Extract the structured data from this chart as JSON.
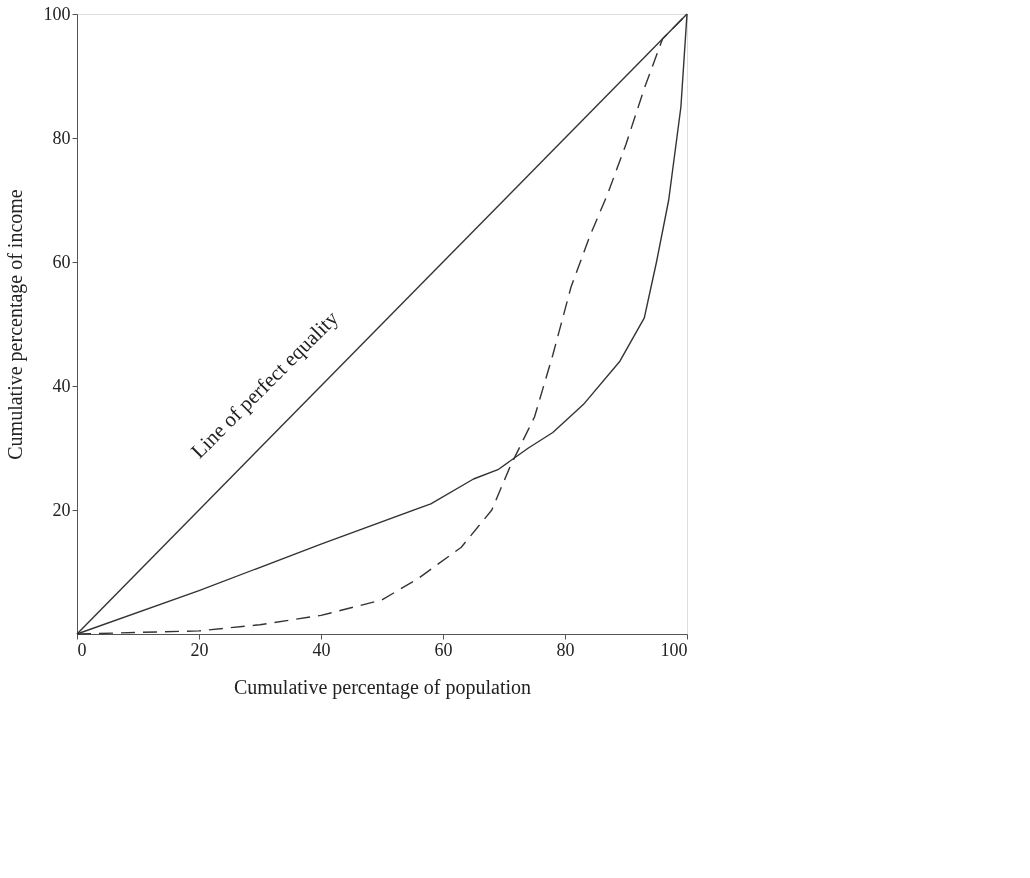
{
  "chart_data": {
    "type": "line",
    "xlabel": "Cumulative percentage of population",
    "ylabel": "Cumulative percentage of income",
    "xlim": [
      0,
      100
    ],
    "ylim": [
      0,
      100
    ],
    "xticks": [
      0,
      20,
      40,
      60,
      80,
      100
    ],
    "yticks": [
      20,
      40,
      60,
      80,
      100
    ],
    "grid": false,
    "marker": "none",
    "series": [
      {
        "color": "#333333",
        "line_style": "solid",
        "x": [
          0,
          100
        ],
        "values": [
          0,
          100
        ]
      },
      {
        "color": "#333333",
        "line_style": "solid",
        "x": [
          0,
          20,
          40,
          58,
          65,
          69,
          74,
          78,
          83,
          89,
          93,
          95,
          97,
          99,
          100
        ],
        "values": [
          0,
          7,
          14.5,
          21,
          25,
          26.5,
          30,
          32.5,
          37,
          44,
          51,
          60,
          70,
          85,
          100
        ]
      },
      {
        "color": "#333333",
        "line_style": "dashed",
        "x": [
          0,
          20,
          30,
          40,
          50,
          56,
          63,
          68,
          71,
          75,
          78,
          81,
          84,
          87,
          90,
          93,
          96,
          100
        ],
        "values": [
          0,
          0.5,
          1.5,
          3,
          5.5,
          9,
          14,
          20,
          27,
          35,
          45,
          56,
          64,
          71,
          79,
          88,
          96,
          100
        ]
      }
    ],
    "annotations": [
      "Line of perfect equality"
    ]
  }
}
